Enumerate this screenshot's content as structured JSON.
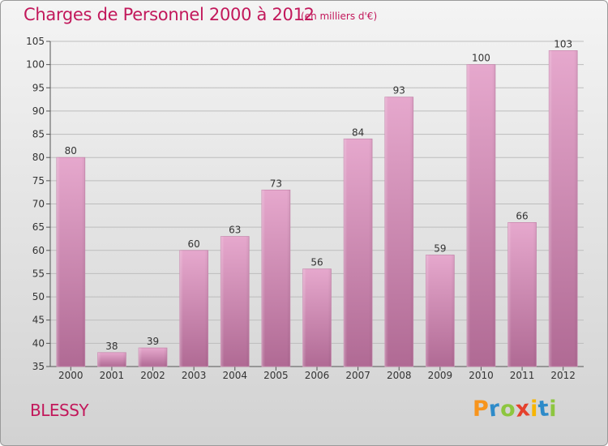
{
  "title": "Charges de Personnel 2000 à 2012",
  "subtitle": "(en milliers d'€)",
  "commune": "BLESSY",
  "logo": {
    "text": "Proxiti",
    "colors": [
      "#f7941d",
      "#2e8bc9",
      "#8dc63f",
      "#e5412d",
      "#f7b500",
      "#2e8bc9",
      "#8dc63f"
    ]
  },
  "chart_data": {
    "type": "bar",
    "categories": [
      "2000",
      "2001",
      "2002",
      "2003",
      "2004",
      "2005",
      "2006",
      "2007",
      "2008",
      "2009",
      "2010",
      "2011",
      "2012"
    ],
    "values": [
      80,
      38,
      39,
      60,
      63,
      73,
      56,
      84,
      93,
      59,
      100,
      66,
      103
    ],
    "title": "Charges de Personnel 2000 à 2012",
    "subtitle": "(en milliers d'€)",
    "xlabel": "",
    "ylabel": "",
    "ylim": [
      35,
      105
    ],
    "yticks": [
      35,
      40,
      45,
      50,
      55,
      60,
      65,
      70,
      75,
      80,
      85,
      90,
      95,
      100,
      105
    ],
    "grid": true,
    "bar_color": "#dc9cc2"
  }
}
